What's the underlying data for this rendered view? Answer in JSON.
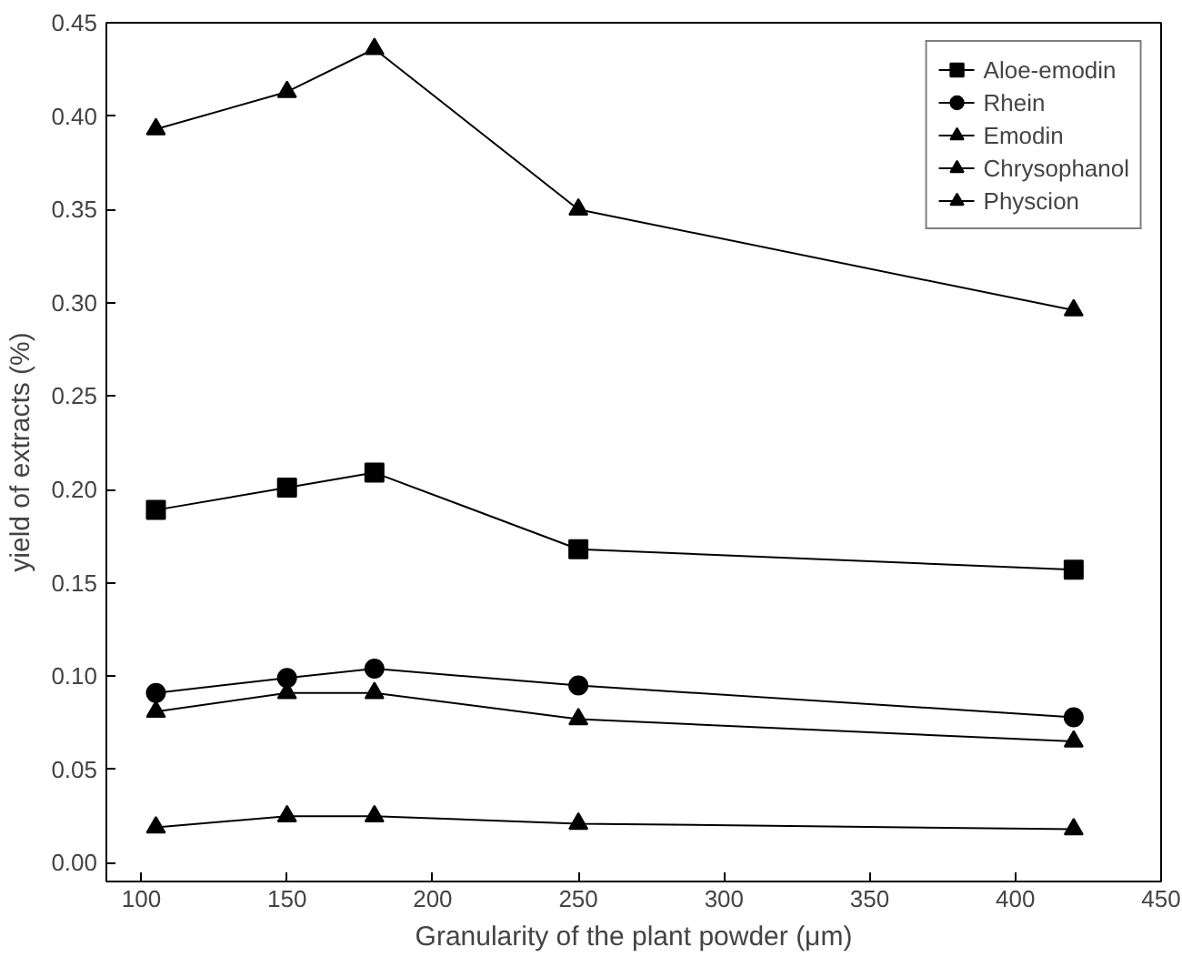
{
  "chart_data": {
    "type": "line",
    "xlabel": "Granularity of the plant powder (μm)",
    "ylabel": "yield of extracts (%)",
    "x": [
      105,
      150,
      180,
      250,
      420
    ],
    "xlim": [
      88,
      450
    ],
    "xticks": [
      100,
      150,
      200,
      250,
      300,
      350,
      400,
      450
    ],
    "ylim": [
      -0.01,
      0.45
    ],
    "yticks": [
      {
        "value": 0.0,
        "label": "0.00"
      },
      {
        "value": 0.05,
        "label": "0.05"
      },
      {
        "value": 0.1,
        "label": "0.10"
      },
      {
        "value": 0.15,
        "label": "0.15"
      },
      {
        "value": 0.2,
        "label": "0.20"
      },
      {
        "value": 0.25,
        "label": "0.25"
      },
      {
        "value": 0.3,
        "label": "0.30"
      },
      {
        "value": 0.35,
        "label": "0.35"
      },
      {
        "value": 0.4,
        "label": "0.40"
      },
      {
        "value": 0.45,
        "label": "0.45"
      }
    ],
    "grid": false,
    "legend": "top right",
    "line_style": "solid",
    "series": [
      {
        "name": "Aloe-emodin",
        "color": "#000000",
        "marker": "square",
        "values": [
          0.189,
          0.201,
          0.209,
          0.168,
          0.157
        ]
      },
      {
        "name": "Rhein",
        "color": "#000000",
        "marker": "circle",
        "values": [
          0.091,
          0.099,
          0.104,
          0.095,
          0.078
        ]
      },
      {
        "name": "Emodin",
        "color": "#000000",
        "marker": "triangle",
        "values": [
          0.393,
          0.413,
          0.436,
          0.35,
          0.296
        ]
      },
      {
        "name": "Chrysophanol",
        "color": "#000000",
        "marker": "triangle",
        "values": [
          0.081,
          0.091,
          0.091,
          0.077,
          0.065
        ]
      },
      {
        "name": "Physcion",
        "color": "#000000",
        "marker": "triangle",
        "values": [
          0.019,
          0.025,
          0.025,
          0.021,
          0.018
        ]
      }
    ]
  }
}
